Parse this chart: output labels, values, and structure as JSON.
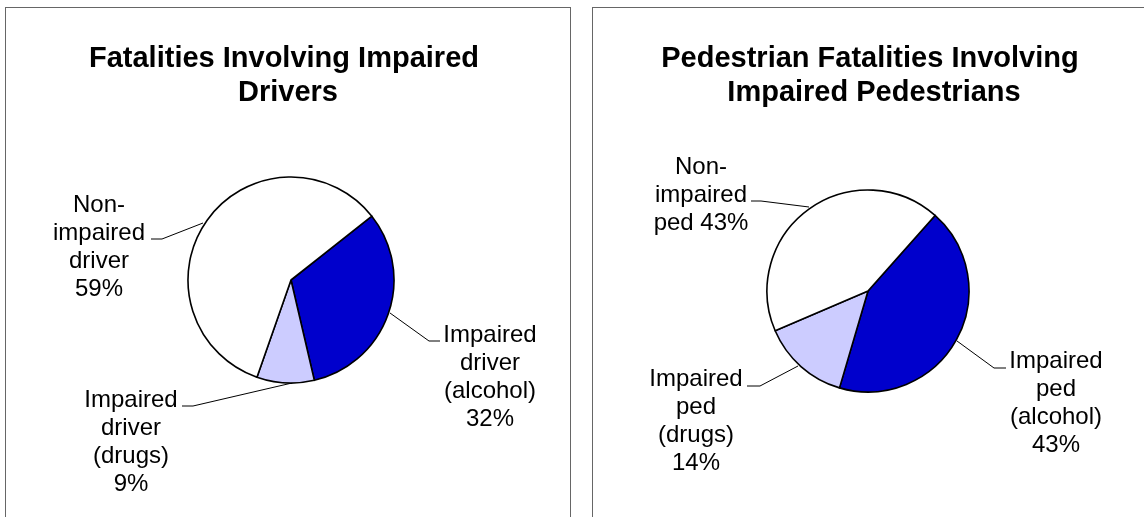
{
  "chart_data": [
    {
      "type": "pie",
      "title": "Fatalities Involving Impaired Drivers",
      "categories": [
        "Impaired driver (alcohol)",
        "Impaired driver (drugs)",
        "Non-impaired driver"
      ],
      "values": [
        32,
        9,
        59
      ],
      "value_labels": [
        "32%",
        "9%",
        "59%"
      ],
      "colors": [
        "#0000cc",
        "#ccccff",
        "#ffffff"
      ]
    },
    {
      "type": "pie",
      "title": "Pedestrian Fatalities Involving Impaired Pedestrians",
      "categories": [
        "Impaired ped (alcohol)",
        "Impaired ped (drugs)",
        "Non-impaired ped"
      ],
      "values": [
        43,
        14,
        43
      ],
      "value_labels": [
        "43%",
        "14%",
        "43%"
      ],
      "colors": [
        "#0000cc",
        "#ccccff",
        "#ffffff"
      ]
    }
  ]
}
